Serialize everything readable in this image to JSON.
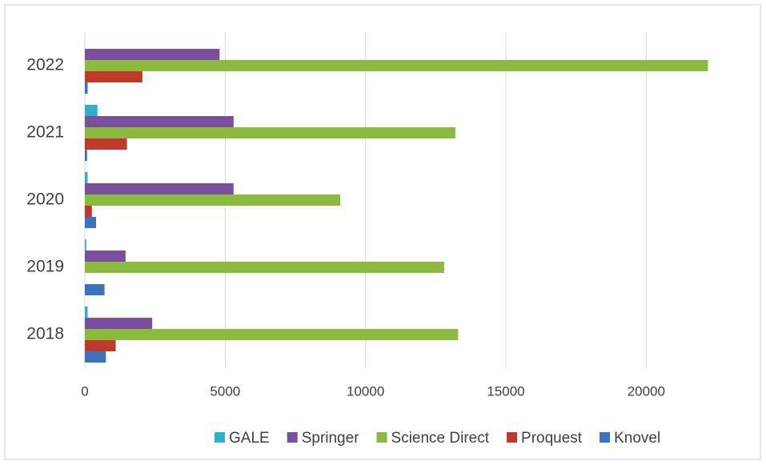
{
  "chart_data": {
    "type": "hbar",
    "categories": [
      "2018",
      "2019",
      "2020",
      "2021",
      "2022"
    ],
    "series": [
      {
        "name": "Knovel",
        "color": "#3a72c0",
        "values": [
          750,
          700,
          400,
          80,
          100
        ]
      },
      {
        "name": "Proquest",
        "color": "#c0392b",
        "values": [
          1100,
          0,
          250,
          1500,
          2050
        ]
      },
      {
        "name": "Science Direct",
        "color": "#8cba3c",
        "values": [
          13300,
          12800,
          9100,
          13200,
          22200
        ]
      },
      {
        "name": "Springer",
        "color": "#7a4fa0",
        "values": [
          2400,
          1450,
          5300,
          5300,
          4800
        ]
      },
      {
        "name": "GALE",
        "color": "#31b0c8",
        "values": [
          100,
          50,
          100,
          450,
          0
        ]
      }
    ],
    "xlim": [
      0,
      22500
    ],
    "xticks": [
      0,
      5000,
      10000,
      15000,
      20000
    ],
    "grid": true,
    "legend": "bottom"
  }
}
